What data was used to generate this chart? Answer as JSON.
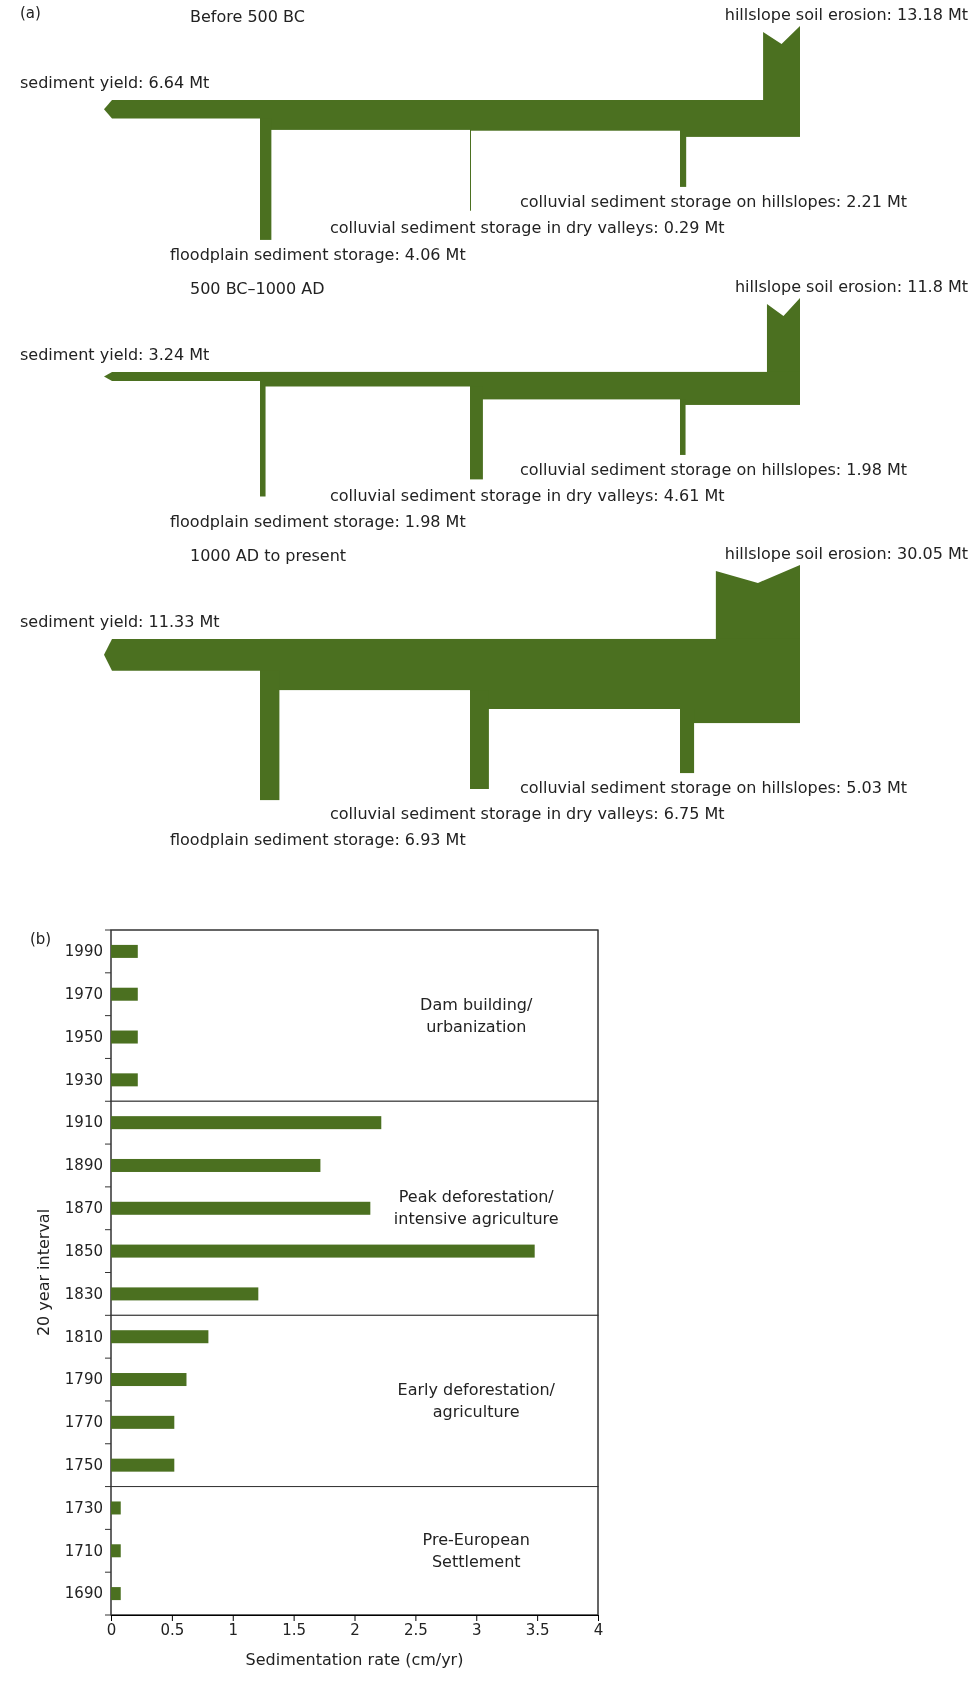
{
  "chart_data": [
    {
      "type": "other",
      "title": "Before 500 BC",
      "color": "#4b7020",
      "annotations": [
        "(a)"
      ],
      "categories": [
        "hillslope soil erosion",
        "colluvial sediment storage on hillslopes",
        "colluvial sediment storage in dry valleys",
        "floodplain sediment storage",
        "sediment yield"
      ],
      "values": [
        13.18,
        2.21,
        0.29,
        4.06,
        6.64
      ],
      "value_labels": [
        ": 13.18 Mt",
        ": 2.21 Mt",
        ": 0.29 Mt",
        ": 4.06 Mt",
        ": 6.64 Mt"
      ]
    },
    {
      "type": "other",
      "title": "500 BC–1000 AD",
      "color": "#4b7020",
      "categories": [
        "hillslope soil erosion",
        "colluvial sediment storage on hillslopes",
        "colluvial sediment storage in dry valleys",
        "floodplain sediment storage",
        "sediment yield"
      ],
      "values": [
        11.8,
        1.98,
        4.61,
        1.98,
        3.24
      ],
      "value_labels": [
        ": 11.8 Mt",
        ": 1.98 Mt",
        ": 4.61 Mt",
        ": 1.98 Mt",
        ": 3.24 Mt"
      ]
    },
    {
      "type": "other",
      "title": "1000 AD to present",
      "color": "#4b7020",
      "categories": [
        "hillslope soil erosion",
        "colluvial sediment storage on hillslopes",
        "colluvial sediment storage in dry valleys",
        "floodplain sediment storage",
        "sediment yield"
      ],
      "values": [
        30.05,
        5.03,
        6.75,
        6.93,
        11.33
      ],
      "value_labels": [
        ": 30.05 Mt",
        ": 5.03 Mt",
        ": 6.75 Mt",
        ": 6.93 Mt",
        ": 11.33 Mt"
      ]
    },
    {
      "type": "bar",
      "orientation": "horizontal",
      "color": "#4b7020",
      "annotations": [
        "(b)"
      ],
      "xlabel": "Sedimentation rate (cm/yr)",
      "ylabel": "20 year interval",
      "categories": [
        "1990",
        "1970",
        "1950",
        "1930",
        "1910",
        "1890",
        "1870",
        "1850",
        "1830",
        "1810",
        "1790",
        "1770",
        "1750",
        "1730",
        "1710",
        "1690"
      ],
      "values": [
        0.22,
        0.22,
        0.22,
        0.22,
        2.22,
        1.72,
        2.13,
        3.48,
        1.21,
        0.8,
        0.62,
        0.52,
        0.52,
        0.08,
        0.08,
        0.08
      ],
      "xlim": [
        0,
        4
      ],
      "xticks": [
        0,
        0.5,
        1,
        1.5,
        2,
        2.5,
        3,
        3.5,
        4
      ],
      "bands": [
        {
          "axis": "y",
          "from": "1990",
          "to": "1930",
          "label": "Dam building/\nurbanization",
          "color": "#ffffff"
        },
        {
          "axis": "y",
          "from": "1910",
          "to": "1830",
          "label": "Peak deforestation/\nintensive agriculture",
          "color": "#ffffff"
        },
        {
          "axis": "y",
          "from": "1810",
          "to": "1750",
          "label": "Early deforestation/\nagriculture",
          "color": "#ffffff"
        },
        {
          "axis": "y",
          "from": "1730",
          "to": "1690",
          "label": "Pre-European\nSettlement",
          "color": "#ffffff"
        }
      ]
    }
  ]
}
